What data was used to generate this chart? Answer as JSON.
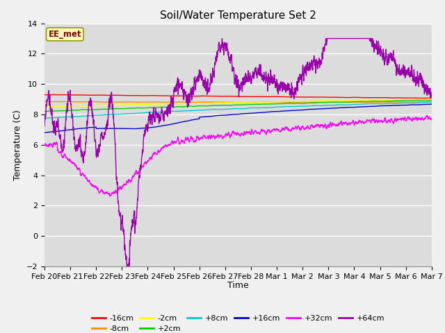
{
  "title": "Soil/Water Temperature Set 2",
  "xlabel": "Time",
  "ylabel": "Temperature (C)",
  "ylim": [
    -2,
    14
  ],
  "xlim": [
    0,
    15
  ],
  "annotation": "EE_met",
  "annotation_color": "#8B0000",
  "annotation_bg": "#FFFFC0",
  "annotation_border": "#999900",
  "tick_labels": [
    "Feb 20",
    "Feb 21",
    "Feb 22",
    "Feb 23",
    "Feb 24",
    "Feb 25",
    "Feb 26",
    "Feb 27",
    "Feb 28",
    "Mar 1",
    "Mar 2",
    "Mar 3",
    "Mar 4",
    "Mar 5",
    "Mar 6",
    "Mar 7"
  ],
  "series_colors": {
    "-16cm": "#FF0000",
    "-8cm": "#FF8C00",
    "-2cm": "#FFFF00",
    "+2cm": "#00CC00",
    "+8cm": "#00CCCC",
    "+16cm": "#0000CC",
    "+32cm": "#FF00FF",
    "+64cm": "#9900AA"
  },
  "background_color": "#DCDCDC",
  "plot_bg": "#DCDCDC",
  "grid_color": "#FFFFFF",
  "fig_bg": "#F0F0F0",
  "title_fontsize": 11,
  "axis_fontsize": 9,
  "tick_fontsize": 8
}
